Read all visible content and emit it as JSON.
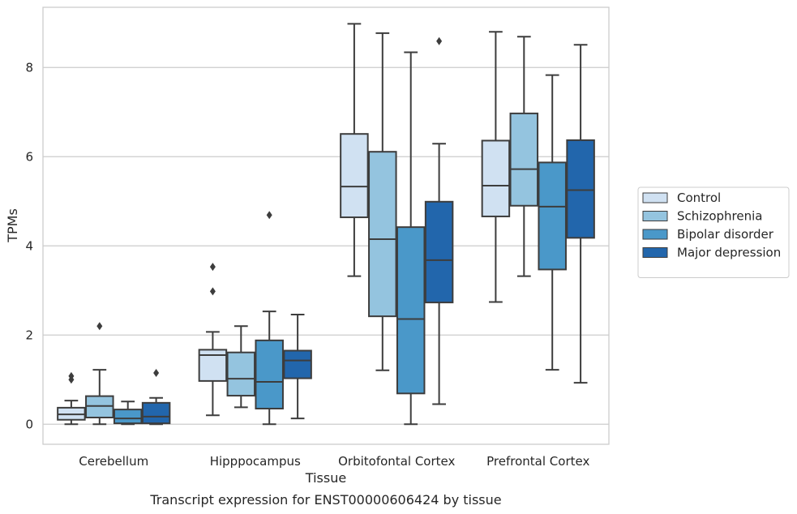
{
  "chart_data": {
    "type": "boxplot",
    "caption": "Transcript expression for ENST00000606424 by tissue",
    "xlabel": "Tissue",
    "ylabel": "TPMs",
    "ylim": [
      -0.45,
      9.35
    ],
    "yticks": [
      0,
      2,
      4,
      6,
      8
    ],
    "grid": "horizontal",
    "legend_placement": "right",
    "categories": [
      "Cerebellum",
      "Hipppocampus",
      "Orbitofontal Cortex",
      "Prefrontal Cortex"
    ],
    "series": [
      {
        "name": "Control",
        "color": "#d0e1f2",
        "boxes": [
          {
            "whisker_low": 0.0,
            "q1": 0.1,
            "median": 0.22,
            "q3": 0.37,
            "whisker_high": 0.53,
            "outliers": [
              1.0,
              1.08
            ]
          },
          {
            "whisker_low": 0.2,
            "q1": 0.97,
            "median": 1.55,
            "q3": 1.67,
            "whisker_high": 2.07,
            "outliers": [
              2.98,
              3.53
            ]
          },
          {
            "whisker_low": 3.32,
            "q1": 4.64,
            "median": 5.33,
            "q3": 6.51,
            "whisker_high": 8.98,
            "outliers": []
          },
          {
            "whisker_low": 2.74,
            "q1": 4.66,
            "median": 5.35,
            "q3": 6.36,
            "whisker_high": 8.8,
            "outliers": []
          }
        ]
      },
      {
        "name": "Schizophrenia",
        "color": "#94c4df",
        "boxes": [
          {
            "whisker_low": 0.0,
            "q1": 0.15,
            "median": 0.41,
            "q3": 0.63,
            "whisker_high": 1.22,
            "outliers": [
              2.2
            ]
          },
          {
            "whisker_low": 0.38,
            "q1": 0.64,
            "median": 1.02,
            "q3": 1.61,
            "whisker_high": 2.2,
            "outliers": []
          },
          {
            "whisker_low": 1.21,
            "q1": 2.42,
            "median": 4.15,
            "q3": 6.11,
            "whisker_high": 8.77,
            "outliers": []
          },
          {
            "whisker_low": 3.32,
            "q1": 4.9,
            "median": 5.72,
            "q3": 6.97,
            "whisker_high": 8.69,
            "outliers": []
          }
        ]
      },
      {
        "name": "Bipolar disorder",
        "color": "#4a98c9",
        "boxes": [
          {
            "whisker_low": 0.0,
            "q1": 0.02,
            "median": 0.13,
            "q3": 0.33,
            "whisker_high": 0.51,
            "outliers": []
          },
          {
            "whisker_low": 0.0,
            "q1": 0.35,
            "median": 0.95,
            "q3": 1.88,
            "whisker_high": 2.53,
            "outliers": [
              4.69
            ]
          },
          {
            "whisker_low": 0.0,
            "q1": 0.69,
            "median": 2.36,
            "q3": 4.42,
            "whisker_high": 8.34,
            "outliers": []
          },
          {
            "whisker_low": 1.22,
            "q1": 3.47,
            "median": 4.88,
            "q3": 5.87,
            "whisker_high": 7.83,
            "outliers": []
          }
        ]
      },
      {
        "name": "Major depression",
        "color": "#2266ac",
        "boxes": [
          {
            "whisker_low": 0.0,
            "q1": 0.02,
            "median": 0.17,
            "q3": 0.48,
            "whisker_high": 0.59,
            "outliers": [
              1.15
            ]
          },
          {
            "whisker_low": 0.13,
            "q1": 1.03,
            "median": 1.43,
            "q3": 1.65,
            "whisker_high": 2.46,
            "outliers": []
          },
          {
            "whisker_low": 0.45,
            "q1": 2.73,
            "median": 3.68,
            "q3": 4.99,
            "whisker_high": 6.29,
            "outliers": [
              8.59
            ]
          },
          {
            "whisker_low": 0.93,
            "q1": 4.18,
            "median": 5.25,
            "q3": 6.37,
            "whisker_high": 8.51,
            "outliers": []
          }
        ]
      }
    ]
  }
}
